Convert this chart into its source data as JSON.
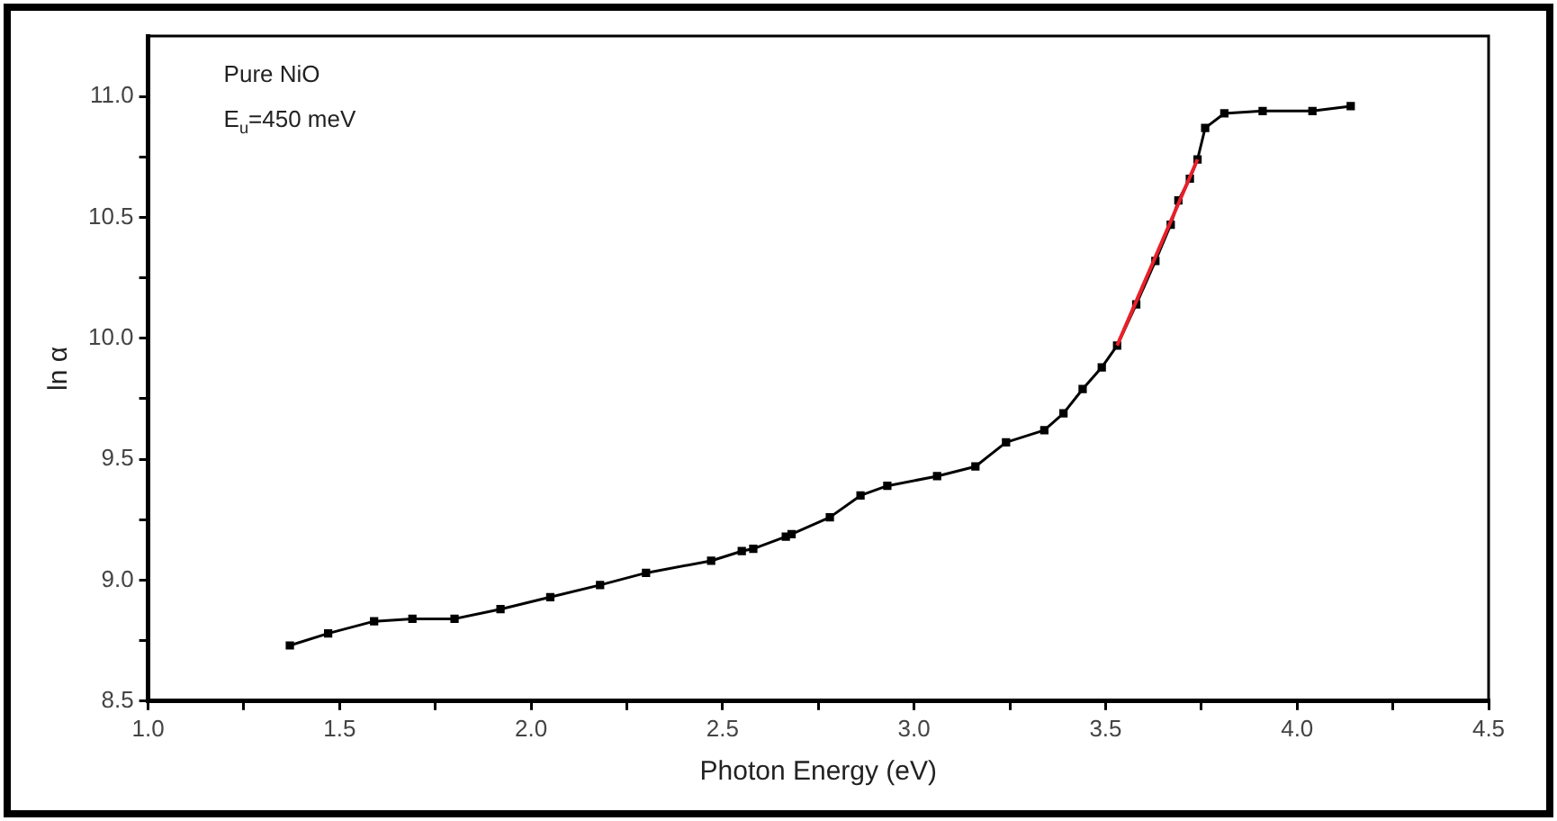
{
  "chart_data": {
    "type": "line",
    "xlabel": "Photon Energy (eV)",
    "ylabel": "ln α",
    "annotations": [
      "Pure NiO",
      "E$_{u}$=450 meV"
    ],
    "xlim": [
      1.0,
      4.5
    ],
    "xticks": [
      {
        "value": 1.0,
        "label": "1.0"
      },
      {
        "value": 1.25,
        "label": null
      },
      {
        "value": 1.5,
        "label": "1.5"
      },
      {
        "value": 1.75,
        "label": null
      },
      {
        "value": 2.0,
        "label": "2.0"
      },
      {
        "value": 2.25,
        "label": null
      },
      {
        "value": 2.5,
        "label": "2.5"
      },
      {
        "value": 2.75,
        "label": null
      },
      {
        "value": 3.0,
        "label": "3.0"
      },
      {
        "value": 3.25,
        "label": null
      },
      {
        "value": 3.5,
        "label": "3.5"
      },
      {
        "value": 3.75,
        "label": null
      },
      {
        "value": 4.0,
        "label": "4.0"
      },
      {
        "value": 4.25,
        "label": null
      },
      {
        "value": 4.5,
        "label": "4.5"
      }
    ],
    "ylim": [
      8.5,
      11.25
    ],
    "yticks": [
      {
        "value": 8.5,
        "label": "8.5"
      },
      {
        "value": 8.75,
        "label": null
      },
      {
        "value": 9.0,
        "label": "9.0"
      },
      {
        "value": 9.25,
        "label": null
      },
      {
        "value": 9.5,
        "label": "9.5"
      },
      {
        "value": 9.75,
        "label": null
      },
      {
        "value": 10.0,
        "label": "10.0"
      },
      {
        "value": 10.25,
        "label": null
      },
      {
        "value": 10.5,
        "label": "10.5"
      },
      {
        "value": 10.75,
        "label": null
      },
      {
        "value": 11.0,
        "label": "11.0"
      }
    ],
    "grid": false,
    "legend": false,
    "marker": "square",
    "line_style": "solid",
    "series": [
      {
        "color": "#000000",
        "x": [
          1.37,
          1.47,
          1.59,
          1.69,
          1.8,
          1.92,
          2.05,
          2.18,
          2.3,
          2.47,
          2.55,
          2.58,
          2.665,
          2.68,
          2.78,
          2.86,
          2.93,
          3.06,
          3.16,
          3.24,
          3.34,
          3.39,
          3.44,
          3.49,
          3.53,
          3.58,
          3.63,
          3.67,
          3.69,
          3.72,
          3.74,
          3.76,
          3.81,
          3.91,
          4.04,
          4.14
        ],
        "values": [
          8.73,
          8.78,
          8.83,
          8.84,
          8.84,
          8.88,
          8.93,
          8.98,
          9.03,
          9.08,
          9.12,
          9.13,
          9.18,
          9.19,
          9.26,
          9.35,
          9.39,
          9.43,
          9.47,
          9.57,
          9.62,
          9.69,
          9.79,
          9.88,
          9.97,
          10.14,
          10.32,
          10.47,
          10.57,
          10.66,
          10.74,
          10.87,
          10.93,
          10.94,
          10.94,
          10.96
        ]
      },
      {
        "type": "line",
        "color": "#e8202a",
        "marker": "none",
        "x": [
          3.53,
          3.74
        ],
        "values": [
          9.97,
          10.74
        ]
      }
    ]
  }
}
